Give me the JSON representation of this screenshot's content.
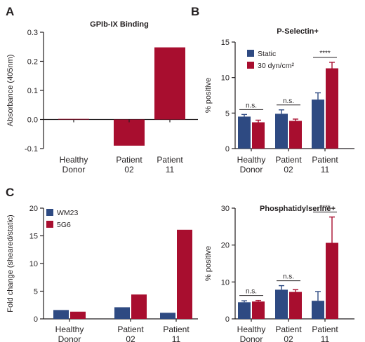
{
  "colors": {
    "blue": "#2e4a82",
    "red": "#a80e2f",
    "axis": "#231f20"
  },
  "chart_data": [
    {
      "panel": "A",
      "type": "bar",
      "title": "GPIb-IX Binding",
      "ylabel": "Absorbance (405nm)",
      "ylim": [
        -0.1,
        0.3
      ],
      "yticks": [
        "0.3",
        "0.2",
        "0.1",
        "0.0",
        "-0.1"
      ],
      "categories": [
        [
          "Healthy",
          "Donor"
        ],
        [
          "Patient",
          "02"
        ],
        [
          "Patient",
          "11"
        ]
      ],
      "series": [
        {
          "values": [
            0.002,
            -0.09,
            0.248
          ],
          "errors": [
            0,
            0,
            0
          ]
        }
      ],
      "grid": false
    },
    {
      "panel": "B",
      "type": "bar",
      "title": "P-Selectin+",
      "ylabel": "% positive",
      "ylim": [
        0,
        15
      ],
      "yticks": [
        "15",
        "10",
        "5",
        "0"
      ],
      "categories": [
        [
          "Healthy",
          "Donor"
        ],
        [
          "Patient",
          "02"
        ],
        [
          "Patient",
          "11"
        ]
      ],
      "series": [
        {
          "name": "Static",
          "values": [
            4.5,
            4.9,
            6.9
          ],
          "errors": [
            0.3,
            0.55,
            0.95
          ]
        },
        {
          "name": "30 dyn/cm²",
          "values": [
            3.7,
            3.9,
            11.3
          ],
          "errors": [
            0.3,
            0.25,
            0.85
          ]
        }
      ],
      "annotations": [
        "n.s.",
        "n.s.",
        "****"
      ],
      "legend": "top-left",
      "grid": false
    },
    {
      "panel": "C",
      "type": "bar",
      "title": "",
      "ylabel": "Fold change (sheared/static)",
      "ylim": [
        0,
        20
      ],
      "yticks": [
        "20",
        "15",
        "10",
        "5",
        "0"
      ],
      "categories": [
        [
          "Healthy",
          "Donor"
        ],
        [
          "Patient",
          "02"
        ],
        [
          "Patient",
          "11"
        ]
      ],
      "series": [
        {
          "name": "WM23",
          "values": [
            1.6,
            2.1,
            1.1
          ],
          "errors": [
            0,
            0,
            0
          ]
        },
        {
          "name": "5G6",
          "values": [
            1.3,
            4.4,
            16.1
          ],
          "errors": [
            0,
            0,
            0
          ]
        }
      ],
      "legend": "top-left",
      "grid": false
    },
    {
      "panel": "",
      "type": "bar",
      "title": "Phosphatidylserine+",
      "ylabel": "% positive",
      "ylim": [
        0,
        30
      ],
      "yticks": [
        "30",
        "20",
        "10",
        "0"
      ],
      "categories": [
        [
          "Healthy",
          "Donor"
        ],
        [
          "Patient",
          "02"
        ],
        [
          "Patient",
          "11"
        ]
      ],
      "series": [
        {
          "values": [
            4.5,
            7.9,
            4.9
          ],
          "errors": [
            0.4,
            1.1,
            2.5
          ]
        },
        {
          "values": [
            4.7,
            7.3,
            20.6
          ],
          "errors": [
            0.3,
            0.6,
            7.0
          ]
        }
      ],
      "annotations": [
        "n.s.",
        "n.s.",
        "****"
      ],
      "grid": false
    }
  ]
}
